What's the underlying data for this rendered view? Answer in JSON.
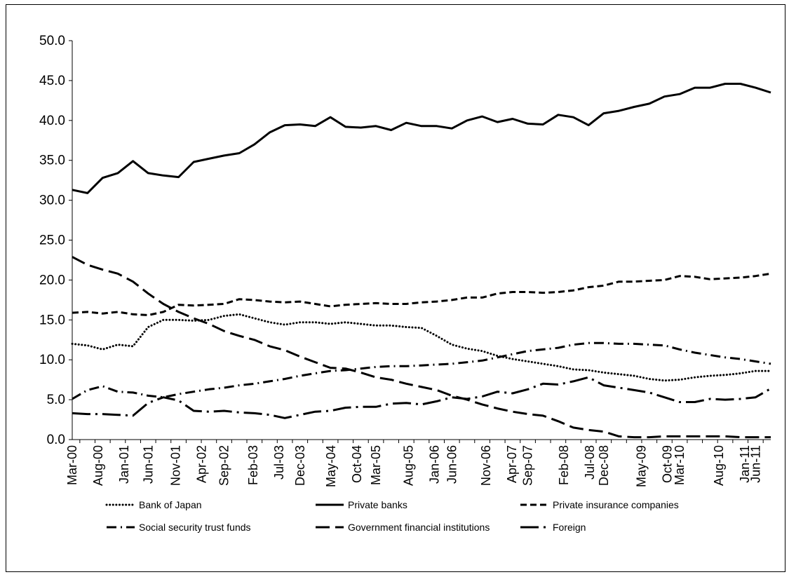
{
  "chart_data": {
    "type": "line",
    "title": "",
    "xlabel": "",
    "ylabel": "",
    "ylim": [
      0,
      50
    ],
    "yticks": [
      "0.0",
      "5.0",
      "10.0",
      "15.0",
      "20.0",
      "25.0",
      "30.0",
      "35.0",
      "40.0",
      "45.0",
      "50.0"
    ],
    "x_tick_labels": [
      "Mar-00",
      "Aug-00",
      "Jan-01",
      "Jun-01",
      "Nov-01",
      "Apr-02",
      "Sep-02",
      "Feb-03",
      "Jul-03",
      "Dec-03",
      "May-04",
      "Oct-04",
      "Mar-05",
      "Aug-05",
      "Jan-06",
      "Jun-06",
      "Nov-06",
      "Apr-07",
      "Sep-07",
      "Feb-08",
      "Jul-08",
      "Dec-08",
      "May-09",
      "Oct-09",
      "Mar-10",
      "Aug-10",
      "Jan-11",
      "Jun-11"
    ],
    "x": [
      "Mar-00",
      "Jun-00",
      "Sep-00",
      "Dec-00",
      "Mar-01",
      "Jun-01",
      "Sep-01",
      "Dec-01",
      "Mar-02",
      "Jun-02",
      "Sep-02",
      "Dec-02",
      "Mar-03",
      "Jun-03",
      "Sep-03",
      "Dec-03",
      "Mar-04",
      "Jun-04",
      "Sep-04",
      "Dec-04",
      "Mar-05",
      "Jun-05",
      "Sep-05",
      "Dec-05",
      "Mar-06",
      "Jun-06",
      "Sep-06",
      "Dec-06",
      "Mar-07",
      "Jun-07",
      "Sep-07",
      "Dec-07",
      "Mar-08",
      "Jun-08",
      "Sep-08",
      "Dec-08",
      "Mar-09",
      "Jun-09",
      "Sep-09",
      "Dec-09",
      "Mar-10",
      "Jun-10",
      "Sep-10",
      "Dec-10",
      "Mar-11",
      "Jun-11",
      "Sep-11"
    ],
    "legend_position": "bottom",
    "grid": false,
    "series": [
      {
        "name": "Bank of Japan",
        "dash": "dotted",
        "values": [
          12.0,
          11.8,
          11.3,
          11.9,
          11.7,
          14.1,
          15.0,
          15.0,
          14.9,
          15.0,
          15.5,
          15.7,
          15.2,
          14.7,
          14.4,
          14.7,
          14.7,
          14.5,
          14.7,
          14.5,
          14.3,
          14.3,
          14.1,
          14.0,
          13.0,
          11.9,
          11.4,
          11.1,
          10.5,
          10.1,
          9.8,
          9.5,
          9.2,
          8.8,
          8.7,
          8.4,
          8.2,
          8.0,
          7.6,
          7.4,
          7.5,
          7.8,
          8.0,
          8.1,
          8.3,
          8.6,
          8.6
        ]
      },
      {
        "name": "Private banks",
        "dash": "solid",
        "values": [
          31.3,
          30.9,
          32.8,
          33.4,
          34.9,
          33.4,
          33.1,
          32.9,
          34.8,
          35.2,
          35.6,
          35.9,
          37.0,
          38.5,
          39.4,
          39.5,
          39.3,
          40.4,
          39.2,
          39.1,
          39.3,
          38.8,
          39.7,
          39.3,
          39.3,
          39.0,
          40.0,
          40.5,
          39.8,
          40.2,
          39.6,
          39.5,
          40.7,
          40.4,
          39.4,
          40.9,
          41.2,
          41.7,
          42.1,
          43.0,
          43.3,
          44.1,
          44.1,
          44.6,
          44.6,
          44.1,
          43.5
        ]
      },
      {
        "name": "Private insurance companies",
        "dash": "dash-short",
        "values": [
          15.9,
          16.0,
          15.8,
          16.0,
          15.7,
          15.6,
          16.0,
          16.9,
          16.8,
          16.9,
          17.0,
          17.6,
          17.5,
          17.3,
          17.2,
          17.3,
          17.0,
          16.7,
          16.9,
          17.0,
          17.1,
          17.0,
          17.0,
          17.2,
          17.3,
          17.5,
          17.8,
          17.8,
          18.3,
          18.5,
          18.5,
          18.4,
          18.5,
          18.7,
          19.1,
          19.3,
          19.8,
          19.8,
          19.9,
          20.0,
          20.5,
          20.4,
          20.1,
          20.2,
          20.3,
          20.5,
          20.8
        ]
      },
      {
        "name": "Social security trust funds",
        "dash": "dash-dot",
        "values": [
          5.1,
          6.2,
          6.7,
          6.0,
          5.9,
          5.5,
          5.3,
          5.7,
          6.0,
          6.3,
          6.5,
          6.8,
          7.0,
          7.3,
          7.6,
          8.0,
          8.3,
          8.6,
          8.7,
          8.9,
          9.1,
          9.2,
          9.2,
          9.3,
          9.4,
          9.5,
          9.7,
          9.9,
          10.3,
          10.7,
          11.1,
          11.3,
          11.5,
          11.9,
          12.1,
          12.1,
          12.0,
          12.0,
          11.9,
          11.8,
          11.3,
          10.9,
          10.6,
          10.3,
          10.1,
          9.8,
          9.5
        ]
      },
      {
        "name": "Government financial institutions",
        "dash": "dash-long",
        "values": [
          22.9,
          21.9,
          21.3,
          20.8,
          19.8,
          18.3,
          17.0,
          16.0,
          15.2,
          14.5,
          13.6,
          13.0,
          12.5,
          11.7,
          11.2,
          10.4,
          9.7,
          9.0,
          8.9,
          8.4,
          7.8,
          7.5,
          7.0,
          6.6,
          6.2,
          5.5,
          5.0,
          4.4,
          3.9,
          3.5,
          3.2,
          3.0,
          2.3,
          1.5,
          1.2,
          1.0,
          0.4,
          0.3,
          0.3,
          0.4,
          0.4,
          0.4,
          0.4,
          0.4,
          0.3,
          0.3,
          0.3
        ]
      },
      {
        "name": "Foreign",
        "dash": "dash-dot-long",
        "values": [
          3.3,
          3.2,
          3.2,
          3.1,
          3.0,
          4.6,
          5.3,
          4.9,
          3.6,
          3.5,
          3.6,
          3.4,
          3.3,
          3.1,
          2.7,
          3.1,
          3.5,
          3.6,
          4.0,
          4.1,
          4.1,
          4.5,
          4.6,
          4.4,
          4.8,
          5.3,
          5.1,
          5.4,
          6.0,
          5.8,
          6.3,
          7.0,
          6.9,
          7.3,
          7.8,
          6.8,
          6.5,
          6.2,
          5.9,
          5.3,
          4.7,
          4.7,
          5.1,
          5.0,
          5.1,
          5.3,
          6.4
        ]
      }
    ]
  }
}
